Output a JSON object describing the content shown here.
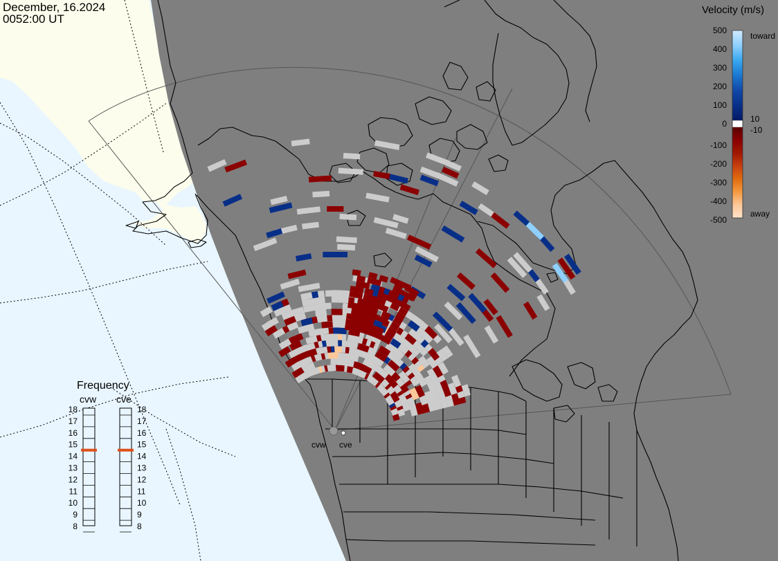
{
  "timestamp": {
    "date": "December, 16.2024",
    "time": "0052:00 UT"
  },
  "colors": {
    "ocean_day": "#e9f6ff",
    "land_day": "#fcfdec",
    "night": "#7f7f7f",
    "scatter_ground": "#cccccc",
    "coast_line": "#000000",
    "grid_line": "#000000",
    "fov_line": "#555555",
    "frequency_marker": "#e0501a"
  },
  "velocity_scale": {
    "title": "Velocity (m/s)",
    "ticks": [
      "500",
      "400",
      "300",
      "200",
      "100",
      "0",
      "-100",
      "-200",
      "-300",
      "-400",
      "-500"
    ],
    "toward_label": "toward",
    "away_label": "away",
    "near_zero_labels": [
      "10",
      "-10"
    ],
    "colors_toward": [
      "#cfe9ff",
      "#8fd0ff",
      "#3aa8f0",
      "#1a78d0",
      "#1048a8",
      "#082f88",
      "#041a66"
    ],
    "colors_away": [
      "#5a0000",
      "#8b0000",
      "#a01800",
      "#c84010",
      "#e06c10",
      "#f59a40",
      "#fcc89a",
      "#ffe3c8"
    ]
  },
  "frequency_panel": {
    "title": "Frequency",
    "radars": [
      "cvw",
      "cve"
    ],
    "scale": [
      "18",
      "17",
      "16",
      "15",
      "14",
      "13",
      "12",
      "11",
      "10",
      "9",
      "8"
    ],
    "selected": {
      "cvw": 15,
      "cve": 15
    }
  },
  "radar_sites": {
    "labels": [
      "cvw",
      "cve"
    ],
    "icon": "radar-site-icon"
  },
  "map": {
    "projection_icon": "polar-stereographic-grid",
    "scatter_cells": {
      "colors_key": "colors.scatter_ground"
    }
  }
}
